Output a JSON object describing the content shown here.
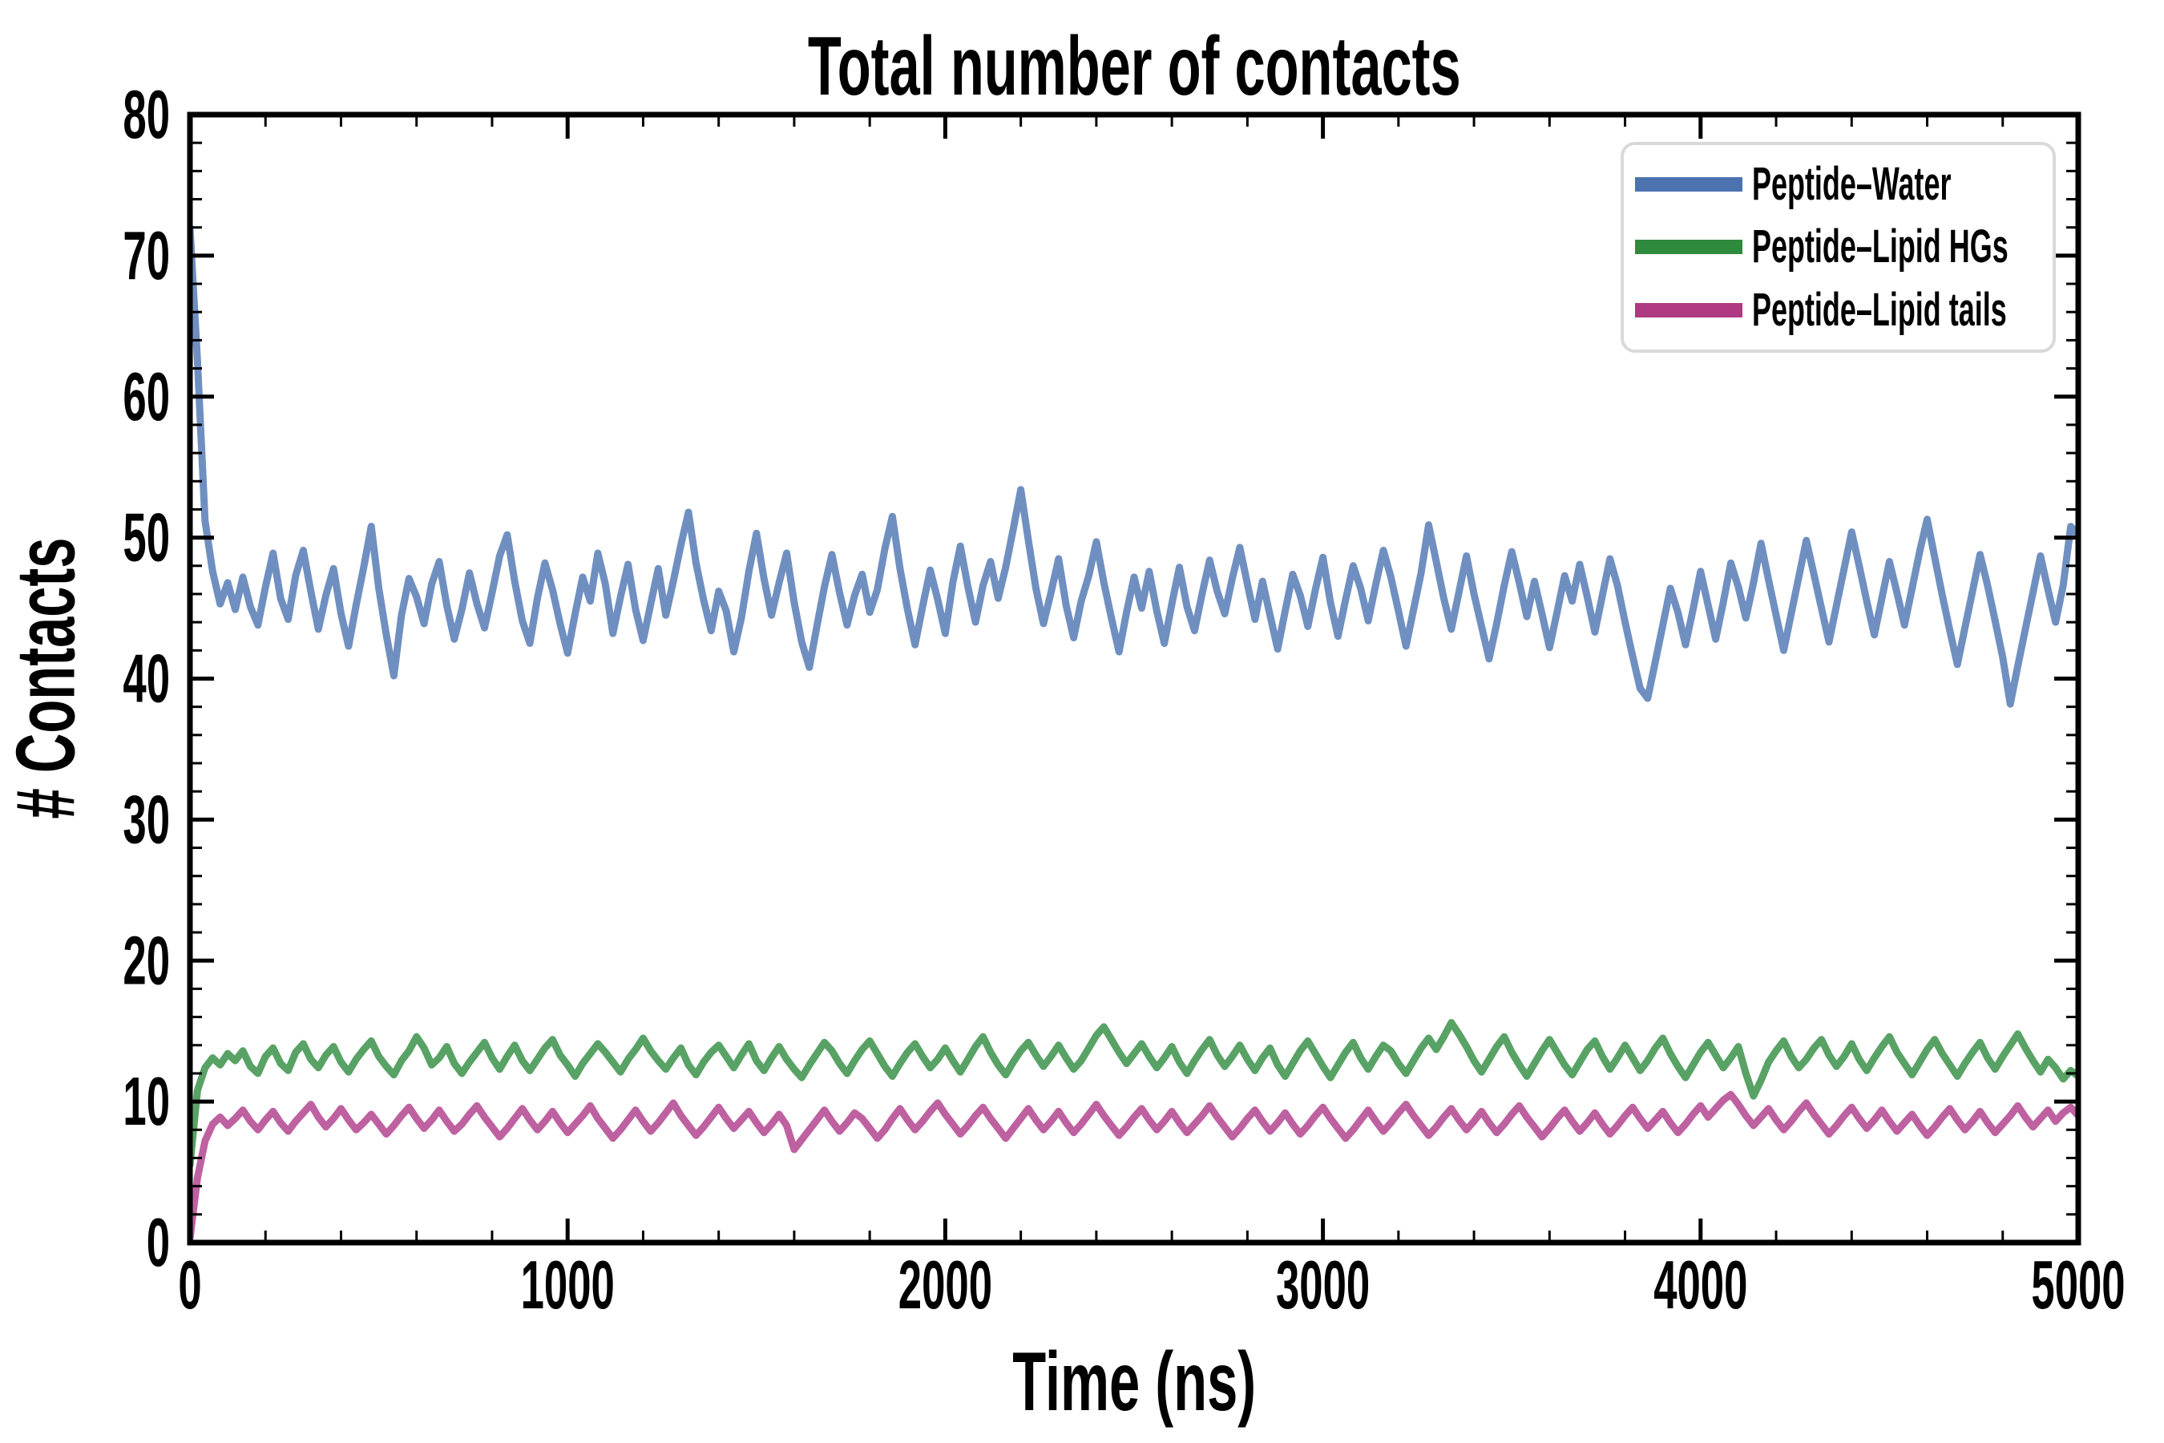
{
  "figure": {
    "title": "Total number of contacts"
  },
  "chart_data": {
    "type": "line",
    "title": "Total number of contacts",
    "xlabel": "Time (ns)",
    "ylabel": "# Contacts",
    "xlim": [
      0,
      5000
    ],
    "ylim": [
      0,
      80
    ],
    "x_major_tick": 1000,
    "x_minor_tick": 200,
    "y_major_tick": 10,
    "y_minor_tick": 2,
    "grid": false,
    "legend_position": "upper right",
    "x_start": 0,
    "x_step": 20,
    "series": [
      {
        "name": "Peptide–Water",
        "color": "#4C72B0",
        "line_color": "#708FC1",
        "values": [
          72,
          62.5,
          51.2,
          47.6,
          45.3,
          46.8,
          44.9,
          47.2,
          45.1,
          43.8,
          46.5,
          48.9,
          45.7,
          44.2,
          47.3,
          49.1,
          46.2,
          43.5,
          45.9,
          47.8,
          44.6,
          42.3,
          45.2,
          47.9,
          50.8,
          46.4,
          43.1,
          40.2,
          44.5,
          47.1,
          45.8,
          43.9,
          46.7,
          48.3,
          45.2,
          42.8,
          44.9,
          47.5,
          45.3,
          43.6,
          46.1,
          48.7,
          50.2,
          46.9,
          44.1,
          42.5,
          45.7,
          48.2,
          46.3,
          43.9,
          41.8,
          44.6,
          47.2,
          45.5,
          48.9,
          46.7,
          43.2,
          45.8,
          48.1,
          44.9,
          42.7,
          45.3,
          47.8,
          44.5,
          46.9,
          49.5,
          51.8,
          48.2,
          45.6,
          43.4,
          46.2,
          44.8,
          41.9,
          44.3,
          47.6,
          50.3,
          47.1,
          44.5,
          46.8,
          48.9,
          45.4,
          42.6,
          40.8,
          43.7,
          46.5,
          48.8,
          46.1,
          43.8,
          45.9,
          47.4,
          44.7,
          46.3,
          49.2,
          51.5,
          47.8,
          44.9,
          42.4,
          45.1,
          47.7,
          45.6,
          43.2,
          46.8,
          49.4,
          46.5,
          44.0,
          46.6,
          48.3,
          45.7,
          47.9,
          50.6,
          53.4,
          49.8,
          46.4,
          43.9,
          46.1,
          48.5,
          45.2,
          42.9,
          45.5,
          47.3,
          49.7,
          46.8,
          44.3,
          41.9,
          44.7,
          47.2,
          45.0,
          47.6,
          44.8,
          42.5,
          45.3,
          47.9,
          45.1,
          43.4,
          46.0,
          48.4,
          46.2,
          44.6,
          47.1,
          49.3,
          46.7,
          44.2,
          46.9,
          44.5,
          42.1,
          44.8,
          47.4,
          45.9,
          43.7,
          46.3,
          48.6,
          45.4,
          43.0,
          45.6,
          48.0,
          46.4,
          44.1,
          46.7,
          49.1,
          47.2,
          44.8,
          42.3,
          44.9,
          47.5,
          50.9,
          48.3,
          45.7,
          43.5,
          46.1,
          48.7,
          46.0,
          43.7,
          41.4,
          43.9,
          46.6,
          49.0,
          46.8,
          44.4,
          46.9,
          44.6,
          42.2,
          44.7,
          47.3,
          45.5,
          48.1,
          45.8,
          43.3,
          45.9,
          48.5,
          46.6,
          44.0,
          41.6,
          39.3,
          38.6,
          41.2,
          43.8,
          46.4,
          44.7,
          42.4,
          44.9,
          47.6,
          45.2,
          42.8,
          45.4,
          48.2,
          46.5,
          44.3,
          46.8,
          49.6,
          47.0,
          44.5,
          42.0,
          44.6,
          47.2,
          49.8,
          47.4,
          45.0,
          42.6,
          45.2,
          47.8,
          50.4,
          48.0,
          45.5,
          43.1,
          45.7,
          48.3,
          46.1,
          43.8,
          46.4,
          49.0,
          51.3,
          48.6,
          45.9,
          43.4,
          41.0,
          43.6,
          46.2,
          48.8,
          46.6,
          44.1,
          41.5,
          38.2,
          40.9,
          43.5,
          46.1,
          48.7,
          46.3,
          44.0,
          46.6,
          50.8,
          50.2
        ]
      },
      {
        "name": "Peptide–Lipid HGs",
        "color": "#2E8B3E",
        "line_color": "#58A265",
        "values": [
          5.5,
          10.8,
          12.4,
          13.1,
          12.6,
          13.4,
          12.9,
          13.6,
          12.5,
          12.0,
          13.2,
          13.8,
          12.7,
          12.2,
          13.5,
          14.1,
          13.0,
          12.4,
          13.3,
          13.9,
          12.8,
          12.1,
          13.0,
          13.7,
          14.3,
          13.2,
          12.5,
          11.9,
          12.9,
          13.6,
          14.6,
          13.8,
          12.6,
          13.1,
          13.9,
          12.7,
          12.0,
          12.8,
          13.5,
          14.2,
          13.1,
          12.3,
          13.2,
          14.0,
          12.9,
          12.2,
          13.0,
          13.8,
          14.4,
          13.3,
          12.6,
          11.8,
          12.7,
          13.4,
          14.1,
          13.5,
          12.8,
          12.1,
          13.0,
          13.7,
          14.5,
          13.6,
          12.9,
          12.3,
          13.1,
          13.8,
          12.6,
          11.9,
          12.8,
          13.5,
          14.0,
          13.2,
          12.4,
          13.3,
          14.1,
          12.9,
          12.2,
          13.1,
          13.9,
          13.0,
          12.3,
          11.7,
          12.6,
          13.4,
          14.2,
          13.6,
          12.7,
          12.0,
          12.9,
          13.7,
          14.3,
          13.4,
          12.5,
          11.8,
          12.7,
          13.5,
          14.1,
          13.2,
          12.4,
          13.0,
          13.8,
          12.9,
          12.1,
          13.0,
          13.9,
          14.6,
          13.5,
          12.6,
          11.9,
          12.8,
          13.6,
          14.2,
          13.3,
          12.5,
          13.2,
          14.0,
          13.1,
          12.3,
          12.9,
          13.8,
          14.7,
          15.3,
          14.4,
          13.5,
          12.7,
          13.4,
          14.1,
          13.2,
          12.4,
          13.1,
          13.9,
          12.8,
          12.0,
          12.9,
          13.7,
          14.4,
          13.3,
          12.5,
          13.2,
          14.0,
          13.0,
          12.2,
          13.1,
          13.8,
          12.6,
          11.8,
          12.7,
          13.6,
          14.3,
          13.4,
          12.5,
          11.7,
          12.6,
          13.5,
          14.2,
          13.1,
          12.3,
          13.2,
          14.0,
          13.6,
          12.7,
          12.0,
          12.9,
          13.8,
          14.5,
          13.7,
          14.6,
          15.6,
          14.8,
          13.9,
          12.9,
          12.1,
          13.0,
          13.9,
          14.6,
          13.5,
          12.6,
          11.8,
          12.7,
          13.6,
          14.4,
          13.5,
          12.6,
          11.9,
          12.8,
          13.7,
          14.3,
          13.2,
          12.3,
          13.1,
          14.0,
          13.1,
          12.2,
          12.9,
          13.8,
          14.5,
          13.4,
          12.5,
          11.7,
          12.6,
          13.5,
          14.2,
          13.3,
          12.4,
          13.1,
          13.9,
          12.0,
          10.4,
          11.5,
          12.8,
          13.6,
          14.3,
          13.2,
          12.4,
          13.0,
          13.8,
          14.4,
          13.3,
          12.5,
          13.2,
          14.1,
          13.0,
          12.2,
          13.1,
          13.9,
          14.6,
          13.5,
          12.7,
          11.9,
          12.8,
          13.7,
          14.4,
          13.4,
          12.6,
          11.8,
          12.7,
          13.5,
          14.2,
          13.1,
          12.3,
          13.2,
          14.0,
          14.8,
          13.8,
          12.9,
          12.1,
          13.0,
          12.4,
          11.6,
          12.2,
          11.8
        ]
      },
      {
        "name": "Peptide–Lipid tails",
        "color": "#AE3A82",
        "line_color": "#BE61A1",
        "values": [
          0.3,
          4.6,
          7.2,
          8.4,
          8.9,
          8.3,
          8.8,
          9.4,
          8.6,
          8.0,
          8.7,
          9.3,
          8.5,
          7.9,
          8.6,
          9.2,
          9.8,
          8.9,
          8.2,
          8.8,
          9.5,
          8.7,
          8.0,
          8.5,
          9.1,
          8.4,
          7.7,
          8.3,
          9.0,
          9.6,
          8.8,
          8.1,
          8.7,
          9.4,
          8.6,
          7.9,
          8.4,
          9.1,
          9.7,
          8.9,
          8.2,
          7.5,
          8.1,
          8.8,
          9.5,
          8.7,
          8.0,
          8.6,
          9.3,
          8.5,
          7.8,
          8.4,
          9.0,
          9.7,
          8.8,
          8.1,
          7.4,
          8.0,
          8.7,
          9.4,
          8.6,
          7.9,
          8.5,
          9.2,
          9.9,
          9.0,
          8.3,
          7.6,
          8.2,
          8.9,
          9.6,
          8.8,
          8.1,
          8.7,
          9.3,
          8.5,
          7.8,
          8.4,
          9.1,
          8.3,
          6.6,
          7.3,
          8.0,
          8.7,
          9.4,
          8.6,
          7.9,
          8.5,
          9.2,
          8.8,
          8.1,
          7.4,
          8.0,
          8.8,
          9.5,
          8.7,
          8.0,
          8.6,
          9.3,
          9.9,
          9.1,
          8.4,
          7.7,
          8.3,
          9.0,
          9.6,
          8.8,
          8.1,
          7.4,
          8.1,
          8.8,
          9.5,
          8.7,
          8.0,
          8.6,
          9.3,
          8.5,
          7.8,
          8.4,
          9.1,
          9.8,
          9.0,
          8.3,
          7.6,
          8.2,
          8.9,
          9.5,
          8.7,
          8.0,
          8.6,
          9.3,
          8.5,
          7.8,
          8.4,
          9.0,
          9.7,
          8.9,
          8.2,
          7.5,
          8.1,
          8.8,
          9.4,
          8.6,
          7.9,
          8.5,
          9.2,
          8.4,
          7.7,
          8.3,
          9.0,
          9.6,
          8.8,
          8.1,
          7.4,
          8.0,
          8.7,
          9.4,
          8.6,
          7.9,
          8.5,
          9.2,
          9.8,
          9.0,
          8.3,
          7.6,
          8.2,
          8.9,
          9.5,
          8.7,
          8.0,
          8.6,
          9.3,
          8.5,
          7.8,
          8.4,
          9.1,
          9.7,
          8.9,
          8.2,
          7.5,
          8.1,
          8.8,
          9.4,
          8.6,
          7.9,
          8.5,
          9.2,
          8.4,
          7.7,
          8.3,
          9.0,
          9.6,
          8.8,
          8.1,
          8.7,
          9.3,
          8.5,
          7.8,
          8.4,
          9.1,
          9.7,
          8.9,
          9.5,
          10.1,
          10.5,
          9.8,
          9.0,
          8.3,
          8.9,
          9.5,
          8.7,
          8.0,
          8.6,
          9.3,
          9.9,
          9.1,
          8.4,
          7.7,
          8.3,
          9.0,
          9.6,
          8.8,
          8.1,
          8.7,
          9.4,
          8.6,
          7.9,
          8.5,
          9.1,
          8.3,
          7.6,
          8.2,
          8.9,
          9.5,
          8.7,
          8.0,
          8.6,
          9.3,
          8.5,
          7.8,
          8.4,
          9.0,
          9.7,
          8.9,
          8.2,
          8.8,
          9.4,
          8.6,
          9.2,
          9.6,
          9.0
        ]
      }
    ]
  }
}
